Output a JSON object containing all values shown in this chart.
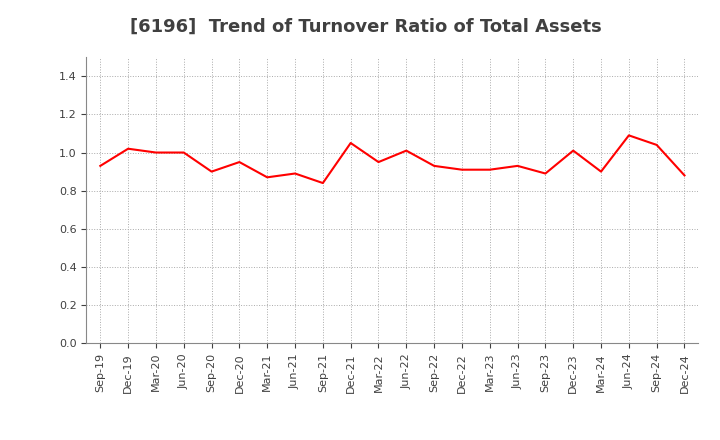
{
  "title": "[6196]  Trend of Turnover Ratio of Total Assets",
  "x_labels": [
    "Sep-19",
    "Dec-19",
    "Mar-20",
    "Jun-20",
    "Sep-20",
    "Dec-20",
    "Mar-21",
    "Jun-21",
    "Sep-21",
    "Dec-21",
    "Mar-22",
    "Jun-22",
    "Sep-22",
    "Dec-22",
    "Mar-23",
    "Jun-23",
    "Sep-23",
    "Dec-23",
    "Mar-24",
    "Jun-24",
    "Sep-24",
    "Dec-24"
  ],
  "values": [
    0.93,
    1.02,
    1.0,
    1.0,
    0.9,
    0.95,
    0.87,
    0.89,
    0.84,
    1.05,
    0.95,
    1.01,
    0.93,
    0.91,
    0.91,
    0.93,
    0.89,
    1.01,
    0.9,
    1.09,
    1.04,
    0.88
  ],
  "line_color": "#ff0000",
  "line_width": 1.5,
  "ylim": [
    0.0,
    1.5
  ],
  "yticks": [
    0.0,
    0.2,
    0.4,
    0.6,
    0.8,
    1.0,
    1.2,
    1.4
  ],
  "grid_color": "#aaaaaa",
  "grid_linestyle": "dotted",
  "title_fontsize": 13,
  "background_color": "#ffffff",
  "tick_label_fontsize": 8,
  "title_color": "#404040",
  "tick_color": "#404040"
}
